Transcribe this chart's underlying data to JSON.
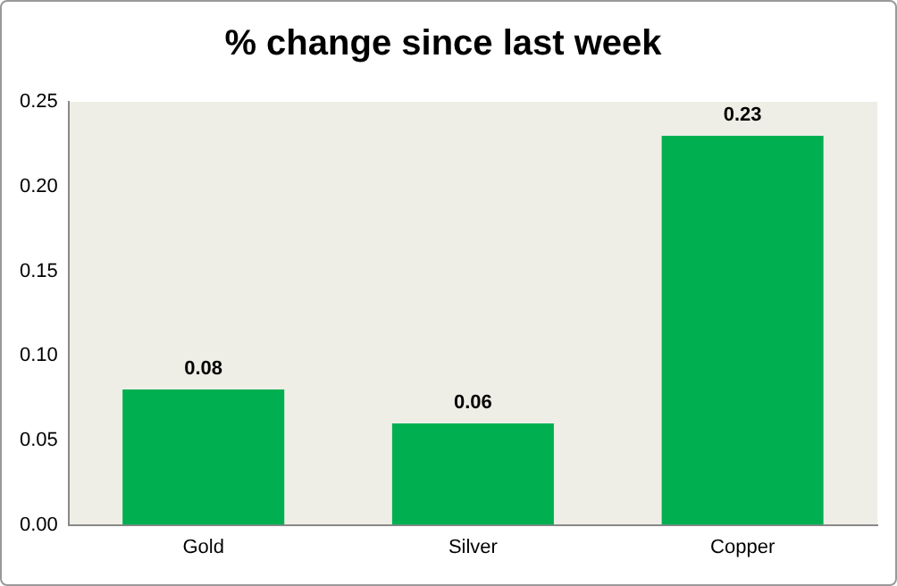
{
  "chart_data": {
    "type": "bar",
    "title": "% change since last week",
    "categories": [
      "Gold",
      "Silver",
      "Copper"
    ],
    "values": [
      0.08,
      0.06,
      0.23
    ],
    "color": "#00b050",
    "ylim": [
      0,
      0.25
    ],
    "yticks": [
      {
        "value": 0,
        "label": "0.00"
      },
      {
        "value": 0.05,
        "label": "0.05"
      },
      {
        "value": 0.1,
        "label": "0.10"
      },
      {
        "value": 0.15,
        "label": "0.15"
      },
      {
        "value": 0.2,
        "label": "0.20"
      },
      {
        "value": 0.25,
        "label": "0.25"
      }
    ],
    "grid": false,
    "legend": false,
    "data_labels": true
  }
}
